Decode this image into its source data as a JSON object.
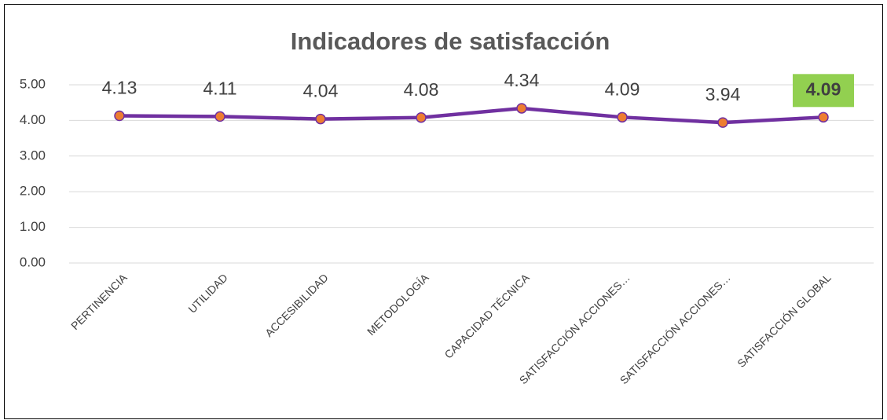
{
  "chart_data": {
    "type": "line",
    "title": "Indicadores de satisfacción",
    "categories": [
      "PERTINENCIA",
      "UTILIDAD",
      "ACCESIBILIDAD",
      "METODOLOGÍA",
      "CAPACIDAD TÉCNICA",
      "SATISFACCIÓN ACCIONES…",
      "SATISFACCIÓN ACCIONES…",
      "SATISFACCIÓN GLOBAL"
    ],
    "values": [
      4.13,
      4.11,
      4.04,
      4.08,
      4.34,
      4.09,
      3.94,
      4.09
    ],
    "color": "#7030a0",
    "marker_color": "#ed7d31",
    "highlight": 7,
    "highlight_color": "#92d050",
    "ylim": [
      0,
      5
    ],
    "yticks": [
      {
        "value": 0,
        "label": "0.00"
      },
      {
        "value": 1,
        "label": "1.00"
      },
      {
        "value": 2,
        "label": "2.00"
      },
      {
        "value": 3,
        "label": "3.00"
      },
      {
        "value": 4,
        "label": "4.00"
      },
      {
        "value": 5,
        "label": "5.00"
      }
    ],
    "grid": true
  }
}
